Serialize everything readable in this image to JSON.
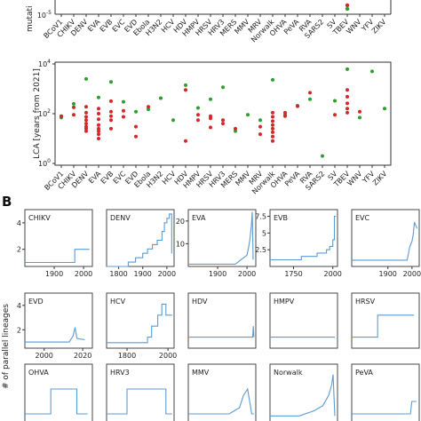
{
  "panel_b_label": "B",
  "top_ylabel": "mutati",
  "top_ytick": "10",
  "top_ytick_exp": "-5",
  "lca_ylabel": "LCA [years from 2021]",
  "lca_yticks": [
    {
      "base": "10",
      "exp": "4",
      "value": 10000
    },
    {
      "base": "10",
      "exp": "2",
      "value": 100
    },
    {
      "base": "10",
      "exp": "0",
      "value": 1
    }
  ],
  "virus_labels": [
    "BCoV1",
    "CHIKV",
    "DENV",
    "EVA",
    "EVB",
    "EVC",
    "EVD",
    "Ebola",
    "H3N2",
    "HCV",
    "HDV",
    "HMPV",
    "HRSV",
    "HRV3",
    "MERS",
    "MMV",
    "MRV",
    "Norwalk",
    "OHVA",
    "PeVA",
    "RVA",
    "SARS2",
    "SV",
    "TBEV",
    "WNV",
    "YFV",
    "ZIKV"
  ],
  "parallel_ylabel": "# of parallel lineages",
  "colors": {
    "red": "#d62728",
    "green": "#2ca02c",
    "line": "#5b9bd5",
    "axis": "#333333"
  },
  "chart_data": [
    {
      "type": "scatter",
      "title": "",
      "ylabel": "LCA [years from 2021]",
      "yscale": "log",
      "ylim": [
        1,
        10000
      ],
      "categories": [
        "BCoV1",
        "CHIKV",
        "DENV",
        "EVA",
        "EVB",
        "EVC",
        "EVD",
        "Ebola",
        "H3N2",
        "HCV",
        "HDV",
        "HMPV",
        "HRSV",
        "HRV3",
        "MERS",
        "MMV",
        "MRV",
        "Norwalk",
        "OHVA",
        "PeVA",
        "RVA",
        "SARS2",
        "SV",
        "TBEV",
        "WNV",
        "YFV",
        "ZIKV"
      ],
      "series": [
        {
          "color": "#2ca02c",
          "points": [
            [
              "BCoV1",
              70
            ],
            [
              "CHIKV",
              250
            ],
            [
              "DENV",
              2500
            ],
            [
              "EVA",
              450
            ],
            [
              "EVB",
              1900
            ],
            [
              "EVC",
              300
            ],
            [
              "EVD",
              120
            ],
            [
              "Ebola",
              150
            ],
            [
              "H3N2",
              420
            ],
            [
              "HCV",
              55
            ],
            [
              "HDV",
              1400
            ],
            [
              "HMPV",
              170
            ],
            [
              "HRSV",
              380
            ],
            [
              "HRV3",
              1150
            ],
            [
              "MERS",
              20
            ],
            [
              "MMV",
              90
            ],
            [
              "MRV",
              55
            ],
            [
              "Norwalk",
              2300
            ],
            [
              "OHVA",
              90
            ],
            [
              "PeVA",
              210
            ],
            [
              "RVA",
              380
            ],
            [
              "SARS2",
              2
            ],
            [
              "SV",
              330
            ],
            [
              "TBEV",
              6200
            ],
            [
              "WNV",
              70
            ],
            [
              "YFV",
              5000
            ],
            [
              "ZIKV",
              160
            ]
          ]
        },
        {
          "color": "#d62728",
          "points": [
            [
              "BCoV1",
              80
            ],
            [
              "CHIKV",
              180
            ],
            [
              "CHIKV",
              90
            ],
            [
              "DENV",
              190
            ],
            [
              "DENV",
              110
            ],
            [
              "DENV",
              75
            ],
            [
              "DENV",
              55
            ],
            [
              "DENV",
              40
            ],
            [
              "DENV",
              30
            ],
            [
              "DENV",
              25
            ],
            [
              "DENV",
              20
            ],
            [
              "EVA",
              160
            ],
            [
              "EVA",
              100
            ],
            [
              "EVA",
              60
            ],
            [
              "EVA",
              35
            ],
            [
              "EVA",
              25
            ],
            [
              "EVA",
              20
            ],
            [
              "EVA",
              15
            ],
            [
              "EVA",
              10
            ],
            [
              "EVB",
              320
            ],
            [
              "EVB",
              120
            ],
            [
              "EVB",
              80
            ],
            [
              "EVB",
              55
            ],
            [
              "EVB",
              25
            ],
            [
              "EVC",
              130
            ],
            [
              "EVC",
              75
            ],
            [
              "EVD",
              30
            ],
            [
              "EVD",
              12
            ],
            [
              "Ebola",
              190
            ],
            [
              "HDV",
              900
            ],
            [
              "HDV",
              8
            ],
            [
              "HMPV",
              90
            ],
            [
              "HMPV",
              55
            ],
            [
              "HRSV",
              80
            ],
            [
              "HRSV",
              65
            ],
            [
              "HRSV",
              28
            ],
            [
              "HRV3",
              55
            ],
            [
              "HRV3",
              40
            ],
            [
              "MERS",
              25
            ],
            [
              "MRV",
              30
            ],
            [
              "MRV",
              15
            ],
            [
              "Norwalk",
              110
            ],
            [
              "Norwalk",
              75
            ],
            [
              "Norwalk",
              50
            ],
            [
              "Norwalk",
              35
            ],
            [
              "Norwalk",
              25
            ],
            [
              "Norwalk",
              18
            ],
            [
              "Norwalk",
              12
            ],
            [
              "Norwalk",
              8
            ],
            [
              "OHVA",
              110
            ],
            [
              "OHVA",
              80
            ],
            [
              "PeVA",
              200
            ],
            [
              "RVA",
              700
            ],
            [
              "SV",
              90
            ],
            [
              "TBEV",
              900
            ],
            [
              "TBEV",
              480
            ],
            [
              "TBEV",
              260
            ],
            [
              "TBEV",
              160
            ],
            [
              "TBEV",
              110
            ],
            [
              "WNV",
              120
            ]
          ]
        }
      ]
    },
    {
      "type": "line",
      "title": "CHIKV",
      "xticks": [
        1900,
        2000
      ],
      "xlim": [
        1800,
        2030
      ],
      "yticks": [
        2,
        4
      ],
      "ylim": [
        0.7,
        5
      ],
      "x": [
        1800,
        1970,
        1970,
        2020
      ],
      "y": [
        1,
        1,
        2,
        2
      ]
    },
    {
      "type": "line",
      "title": "DENV",
      "xticks": [
        1800,
        1900,
        2000
      ],
      "xlim": [
        1750,
        2030
      ],
      "yticks": [],
      "ylim": [
        0,
        13
      ],
      "x": [
        1750,
        1840,
        1840,
        1870,
        1870,
        1900,
        1900,
        1920,
        1920,
        1940,
        1940,
        1960,
        1960,
        1980,
        1980,
        1990,
        1990,
        2000,
        2000,
        2010,
        2010,
        2020,
        2020
      ],
      "y": [
        0,
        0,
        1,
        1,
        2,
        2,
        3,
        3,
        4,
        4,
        5,
        5,
        6,
        6,
        8,
        8,
        10,
        10,
        11,
        11,
        12,
        12,
        3
      ]
    },
    {
      "type": "line",
      "title": "EVA",
      "xticks": [
        1900,
        2000
      ],
      "xlim": [
        1800,
        2030
      ],
      "yticks": [
        10,
        20
      ],
      "ylim": [
        0,
        25
      ],
      "x": [
        1800,
        1960,
        1970,
        1980,
        1990,
        2000,
        2005,
        2010,
        2015,
        2018,
        2021
      ],
      "y": [
        1,
        1,
        2,
        3,
        4,
        5,
        8,
        12,
        18,
        24,
        3
      ]
    },
    {
      "type": "line",
      "title": "EVB",
      "xticks": [
        1750,
        2000
      ],
      "xlim": [
        1600,
        2030
      ],
      "yticks": [
        2.5,
        5.0,
        7.5
      ],
      "ylim": [
        0,
        8.5
      ],
      "x": [
        1600,
        1800,
        1800,
        1900,
        1900,
        1960,
        1960,
        1980,
        1980,
        2000,
        2000,
        2010,
        2010,
        2020
      ],
      "y": [
        1,
        1,
        1.5,
        1.5,
        2,
        2,
        2.5,
        2.5,
        3,
        3,
        4,
        4,
        7.5,
        7.5
      ]
    },
    {
      "type": "line",
      "title": "EVC",
      "xticks": [
        1900,
        2000
      ],
      "xlim": [
        1750,
        2030
      ],
      "yticks": [],
      "ylim": [
        0,
        9
      ],
      "x": [
        1750,
        1980,
        1985,
        1990,
        2000,
        2005,
        2010,
        2021
      ],
      "y": [
        1,
        1,
        2,
        3,
        4,
        5,
        7,
        6
      ]
    },
    {
      "type": "line",
      "title": "EVD",
      "xticks": [
        2000,
        2020
      ],
      "xlim": [
        1990,
        2025
      ],
      "yticks": [
        2,
        4
      ],
      "ylim": [
        0.5,
        5
      ],
      "x": [
        1990,
        2013,
        2015,
        2016,
        2017,
        2021
      ],
      "y": [
        1,
        1,
        1.5,
        2.2,
        1.3,
        1.2
      ]
    },
    {
      "type": "line",
      "title": "HCV",
      "xticks": [
        1800,
        2000
      ],
      "xlim": [
        1700,
        2030
      ],
      "yticks": [],
      "ylim": [
        0,
        10
      ],
      "x": [
        1700,
        1900,
        1900,
        1920,
        1920,
        1950,
        1950,
        1970,
        1970,
        1990,
        1990,
        2021
      ],
      "y": [
        1,
        1,
        2,
        2,
        4,
        4,
        6,
        6,
        8,
        8,
        6,
        6
      ]
    },
    {
      "type": "line",
      "title": "HDV",
      "xticks": [],
      "xlim": [
        1700,
        2030
      ],
      "yticks": [],
      "ylim": [
        0,
        5
      ],
      "x": [
        1700,
        2015,
        2018,
        2021
      ],
      "y": [
        1,
        1,
        2,
        1
      ]
    },
    {
      "type": "line",
      "title": "HMPV",
      "xticks": [],
      "xlim": [
        1800,
        2030
      ],
      "yticks": [],
      "ylim": [
        0,
        5
      ],
      "x": [
        1800,
        2021
      ],
      "y": [
        1,
        1
      ]
    },
    {
      "type": "line",
      "title": "HRSV",
      "xticks": [],
      "xlim": [
        1900,
        2030
      ],
      "yticks": [],
      "ylim": [
        0,
        5
      ],
      "x": [
        1900,
        1950,
        1950,
        2020
      ],
      "y": [
        1,
        1,
        3,
        3
      ]
    },
    {
      "type": "line",
      "title": "OHVA",
      "xticks": [],
      "xlim": [
        1900,
        2030
      ],
      "yticks": [],
      "ylim": [
        0,
        5
      ],
      "x": [
        1900,
        1950,
        1950,
        2000,
        2000,
        2021
      ],
      "y": [
        1,
        1,
        3,
        3,
        1,
        1
      ]
    },
    {
      "type": "line",
      "title": "HRV3",
      "xticks": [],
      "xlim": [
        1700,
        2030
      ],
      "yticks": [],
      "ylim": [
        0,
        5
      ],
      "x": [
        1700,
        1800,
        1800,
        1990,
        1990,
        2021
      ],
      "y": [
        1,
        1,
        3,
        3,
        1,
        1
      ]
    },
    {
      "type": "line",
      "title": "MMV",
      "xticks": [],
      "xlim": [
        1700,
        2030
      ],
      "yticks": [],
      "ylim": [
        0,
        5
      ],
      "x": [
        1700,
        1900,
        1950,
        1970,
        1990,
        2010,
        2021
      ],
      "y": [
        1,
        1,
        1.5,
        2.5,
        3,
        1,
        1
      ]
    },
    {
      "type": "line",
      "title": "Norwalk",
      "xticks": [],
      "xlim": [
        1800,
        2030
      ],
      "yticks": [],
      "ylim": [
        0,
        6
      ],
      "x": [
        1800,
        1900,
        1950,
        1980,
        2000,
        2010,
        2015,
        2021
      ],
      "y": [
        1,
        1,
        1.5,
        2,
        3,
        4,
        5,
        1
      ]
    },
    {
      "type": "line",
      "title": "PeVA",
      "xticks": [],
      "xlim": [
        1800,
        2030
      ],
      "yticks": [],
      "ylim": [
        0,
        5
      ],
      "x": [
        1800,
        2000,
        2005,
        2021
      ],
      "y": [
        1,
        1,
        2,
        2
      ]
    }
  ]
}
